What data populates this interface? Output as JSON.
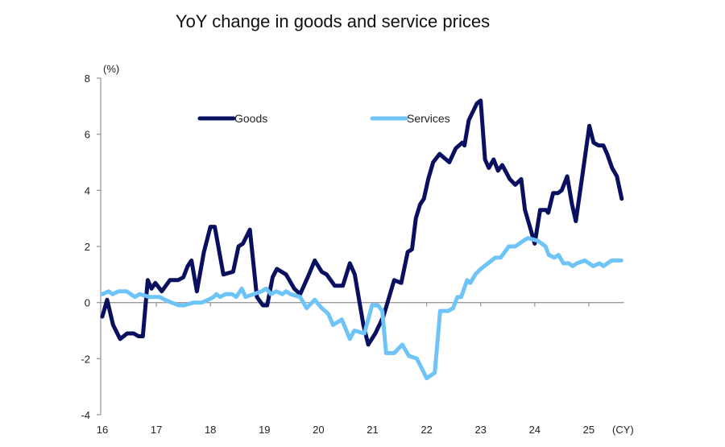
{
  "chart_data": {
    "type": "line",
    "title": "YoY change in goods and service prices",
    "ylabel": "(%)",
    "xlabel": "(CY)",
    "ylim": [
      -4,
      8
    ],
    "yticks": [
      -4,
      -2,
      0,
      2,
      4,
      6,
      8
    ],
    "xlim": [
      2016,
      2025.65
    ],
    "xticks": [
      2016,
      2017,
      2018,
      2019,
      2020,
      2021,
      2022,
      2023,
      2024,
      2025
    ],
    "xtick_labels": [
      "16",
      "17",
      "18",
      "19",
      "20",
      "21",
      "22",
      "23",
      "24",
      "25"
    ],
    "grid": false,
    "legend": "top",
    "series": [
      {
        "name": "Goods",
        "color": "#0a1060",
        "points": [
          [
            2016.0,
            -0.5
          ],
          [
            2016.09,
            0.1
          ],
          [
            2016.2,
            -0.8
          ],
          [
            2016.33,
            -1.3
          ],
          [
            2016.46,
            -1.1
          ],
          [
            2016.58,
            -1.1
          ],
          [
            2016.67,
            -1.2
          ],
          [
            2016.75,
            -1.2
          ],
          [
            2016.84,
            0.8
          ],
          [
            2016.91,
            0.5
          ],
          [
            2016.98,
            0.7
          ],
          [
            2017.1,
            0.4
          ],
          [
            2017.25,
            0.8
          ],
          [
            2017.4,
            0.8
          ],
          [
            2017.5,
            0.9
          ],
          [
            2017.58,
            1.3
          ],
          [
            2017.65,
            1.5
          ],
          [
            2017.75,
            0.4
          ],
          [
            2017.88,
            1.8
          ],
          [
            2018.0,
            2.7
          ],
          [
            2018.08,
            2.7
          ],
          [
            2018.24,
            1.0
          ],
          [
            2018.42,
            1.1
          ],
          [
            2018.52,
            2.0
          ],
          [
            2018.6,
            2.1
          ],
          [
            2018.73,
            2.6
          ],
          [
            2018.86,
            0.2
          ],
          [
            2018.97,
            -0.1
          ],
          [
            2019.05,
            -0.1
          ],
          [
            2019.15,
            0.9
          ],
          [
            2019.23,
            1.2
          ],
          [
            2019.4,
            1.0
          ],
          [
            2019.55,
            0.5
          ],
          [
            2019.66,
            0.3
          ],
          [
            2019.8,
            0.9
          ],
          [
            2019.93,
            1.5
          ],
          [
            2020.06,
            1.1
          ],
          [
            2020.15,
            1.0
          ],
          [
            2020.3,
            0.6
          ],
          [
            2020.45,
            0.6
          ],
          [
            2020.58,
            1.4
          ],
          [
            2020.67,
            1.0
          ],
          [
            2020.83,
            -0.8
          ],
          [
            2020.92,
            -1.5
          ],
          [
            2021.05,
            -1.1
          ],
          [
            2021.2,
            -0.5
          ],
          [
            2021.4,
            0.8
          ],
          [
            2021.53,
            0.7
          ],
          [
            2021.65,
            1.8
          ],
          [
            2021.73,
            1.9
          ],
          [
            2021.8,
            3.0
          ],
          [
            2021.88,
            3.5
          ],
          [
            2021.95,
            3.7
          ],
          [
            2022.03,
            4.4
          ],
          [
            2022.12,
            5.0
          ],
          [
            2022.24,
            5.3
          ],
          [
            2022.42,
            5.0
          ],
          [
            2022.54,
            5.5
          ],
          [
            2022.66,
            5.7
          ],
          [
            2022.7,
            5.6
          ],
          [
            2022.78,
            6.5
          ],
          [
            2022.83,
            6.7
          ],
          [
            2022.93,
            7.1
          ],
          [
            2023.0,
            7.2
          ],
          [
            2023.08,
            5.1
          ],
          [
            2023.15,
            4.8
          ],
          [
            2023.24,
            5.1
          ],
          [
            2023.32,
            4.7
          ],
          [
            2023.4,
            4.9
          ],
          [
            2023.54,
            4.4
          ],
          [
            2023.64,
            4.2
          ],
          [
            2023.75,
            4.4
          ],
          [
            2023.82,
            3.3
          ],
          [
            2023.91,
            2.7
          ],
          [
            2024.0,
            2.1
          ],
          [
            2024.1,
            3.3
          ],
          [
            2024.21,
            3.3
          ],
          [
            2024.25,
            3.2
          ],
          [
            2024.34,
            3.9
          ],
          [
            2024.43,
            3.9
          ],
          [
            2024.5,
            4.0
          ],
          [
            2024.6,
            4.5
          ],
          [
            2024.69,
            3.5
          ],
          [
            2024.76,
            2.9
          ],
          [
            2024.88,
            4.5
          ],
          [
            2025.01,
            6.3
          ],
          [
            2025.09,
            5.7
          ],
          [
            2025.18,
            5.6
          ],
          [
            2025.27,
            5.6
          ],
          [
            2025.34,
            5.3
          ],
          [
            2025.43,
            4.8
          ],
          [
            2025.52,
            4.5
          ],
          [
            2025.61,
            3.7
          ]
        ]
      },
      {
        "name": "Services",
        "color": "#6ec3f7",
        "points": [
          [
            2016.0,
            0.3
          ],
          [
            2016.12,
            0.4
          ],
          [
            2016.19,
            0.3
          ],
          [
            2016.3,
            0.4
          ],
          [
            2016.45,
            0.4
          ],
          [
            2016.6,
            0.2
          ],
          [
            2016.69,
            0.3
          ],
          [
            2016.87,
            0.2
          ],
          [
            2017.06,
            0.2
          ],
          [
            2017.16,
            0.1
          ],
          [
            2017.28,
            0.0
          ],
          [
            2017.42,
            -0.1
          ],
          [
            2017.51,
            -0.1
          ],
          [
            2017.69,
            0.0
          ],
          [
            2017.84,
            0.0
          ],
          [
            2017.96,
            0.1
          ],
          [
            2018.06,
            0.2
          ],
          [
            2018.11,
            0.3
          ],
          [
            2018.18,
            0.2
          ],
          [
            2018.28,
            0.3
          ],
          [
            2018.4,
            0.3
          ],
          [
            2018.48,
            0.2
          ],
          [
            2018.58,
            0.5
          ],
          [
            2018.65,
            0.2
          ],
          [
            2018.8,
            0.3
          ],
          [
            2018.95,
            0.4
          ],
          [
            2019.03,
            0.5
          ],
          [
            2019.12,
            0.3
          ],
          [
            2019.22,
            0.4
          ],
          [
            2019.33,
            0.3
          ],
          [
            2019.4,
            0.4
          ],
          [
            2019.48,
            0.3
          ],
          [
            2019.66,
            0.2
          ],
          [
            2019.78,
            -0.2
          ],
          [
            2019.93,
            0.1
          ],
          [
            2020.06,
            -0.2
          ],
          [
            2020.18,
            -0.4
          ],
          [
            2020.27,
            -0.8
          ],
          [
            2020.43,
            -0.6
          ],
          [
            2020.58,
            -1.3
          ],
          [
            2020.66,
            -1.0
          ],
          [
            2020.85,
            -1.1
          ],
          [
            2020.99,
            -0.1
          ],
          [
            2021.1,
            -0.1
          ],
          [
            2021.18,
            -0.3
          ],
          [
            2021.25,
            -1.8
          ],
          [
            2021.4,
            -1.8
          ],
          [
            2021.55,
            -1.5
          ],
          [
            2021.67,
            -1.9
          ],
          [
            2021.82,
            -2.0
          ],
          [
            2022.0,
            -2.7
          ],
          [
            2022.15,
            -2.5
          ],
          [
            2022.25,
            -0.3
          ],
          [
            2022.4,
            -0.3
          ],
          [
            2022.49,
            -0.2
          ],
          [
            2022.57,
            0.2
          ],
          [
            2022.64,
            0.2
          ],
          [
            2022.75,
            0.8
          ],
          [
            2022.81,
            0.7
          ],
          [
            2022.9,
            1.0
          ],
          [
            2023.0,
            1.2
          ],
          [
            2023.07,
            1.3
          ],
          [
            2023.27,
            1.6
          ],
          [
            2023.37,
            1.6
          ],
          [
            2023.52,
            2.0
          ],
          [
            2023.64,
            2.0
          ],
          [
            2023.79,
            2.2
          ],
          [
            2023.87,
            2.3
          ],
          [
            2024.06,
            2.2
          ],
          [
            2024.2,
            2.0
          ],
          [
            2024.26,
            1.7
          ],
          [
            2024.36,
            1.6
          ],
          [
            2024.44,
            1.7
          ],
          [
            2024.53,
            1.4
          ],
          [
            2024.63,
            1.4
          ],
          [
            2024.7,
            1.3
          ],
          [
            2024.78,
            1.4
          ],
          [
            2024.93,
            1.5
          ],
          [
            2025.08,
            1.3
          ],
          [
            2025.2,
            1.4
          ],
          [
            2025.27,
            1.3
          ],
          [
            2025.42,
            1.5
          ],
          [
            2025.6,
            1.5
          ]
        ]
      }
    ]
  }
}
